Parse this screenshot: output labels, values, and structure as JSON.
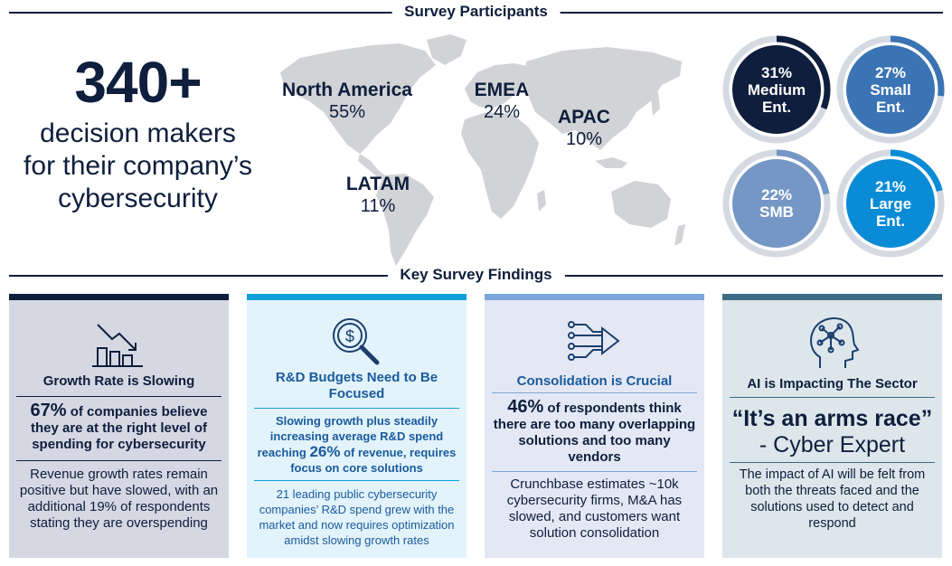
{
  "participants": {
    "heading": "Survey Participants",
    "count": "340+",
    "description_lines": [
      "decision makers",
      "for their company’s",
      "cybersecurity"
    ],
    "regions": [
      {
        "name": "North America",
        "pct": "55%"
      },
      {
        "name": "EMEA",
        "pct": "24%"
      },
      {
        "name": "APAC",
        "pct": "10%"
      },
      {
        "name": "LATAM",
        "pct": "11%"
      }
    ],
    "segments": [
      {
        "pct": "31%",
        "label1": "Medium",
        "label2": "Ent.",
        "fraction": 0.31,
        "color": "#0e1e3c"
      },
      {
        "pct": "27%",
        "label1": "Small",
        "label2": "Ent.",
        "fraction": 0.27,
        "color": "#3b74b4"
      },
      {
        "pct": "22%",
        "label1": "SMB",
        "label2": "",
        "fraction": 0.22,
        "color": "#7497c5"
      },
      {
        "pct": "21%",
        "label1": "Large",
        "label2": "Ent.",
        "fraction": 0.21,
        "color": "#0a8bd6"
      }
    ]
  },
  "findings": {
    "heading": "Key Survey Findings",
    "cards": [
      {
        "title": "Growth Rate is Slowing",
        "stat_number": "67%",
        "stat_text": "of companies believe they are at the right level of spending for cybersecurity",
        "body": "Revenue growth rates remain positive but have slowed, with an additional 19% of respondents stating they are overspending",
        "accent": "#0e1e3c",
        "icon": "declining-bar-chart-icon"
      },
      {
        "title": "R&D Budgets Need to Be Focused",
        "stat_pre": "Slowing growth plus steadily increasing average R&D spend reaching",
        "stat_number": "26%",
        "stat_post": "of revenue, requires focus on core solutions",
        "body": "21 leading public cybersecurity companies’ R&D spend grew with the market and now requires optimization amidst slowing growth rates",
        "accent": "#139fdc",
        "icon": "magnifier-dollar-icon"
      },
      {
        "title": "Consolidation is Crucial",
        "stat_number": "46%",
        "stat_text": "of respondents think there are too many overlapping solutions and too many vendors",
        "body": "Crunchbase estimates ~10k cybersecurity firms, M&A has slowed, and customers want solution consolidation",
        "accent": "#7ea7da",
        "icon": "converging-circuit-arrow-icon"
      },
      {
        "title": "AI is Impacting The Sector",
        "quote": "“It’s an arms race”",
        "attribution": "- Cyber Expert",
        "body": "The impact of AI will be felt from both the threats faced and the solutions used to detect and respond",
        "accent": "#3d6d86",
        "icon": "ai-head-network-icon"
      }
    ]
  }
}
